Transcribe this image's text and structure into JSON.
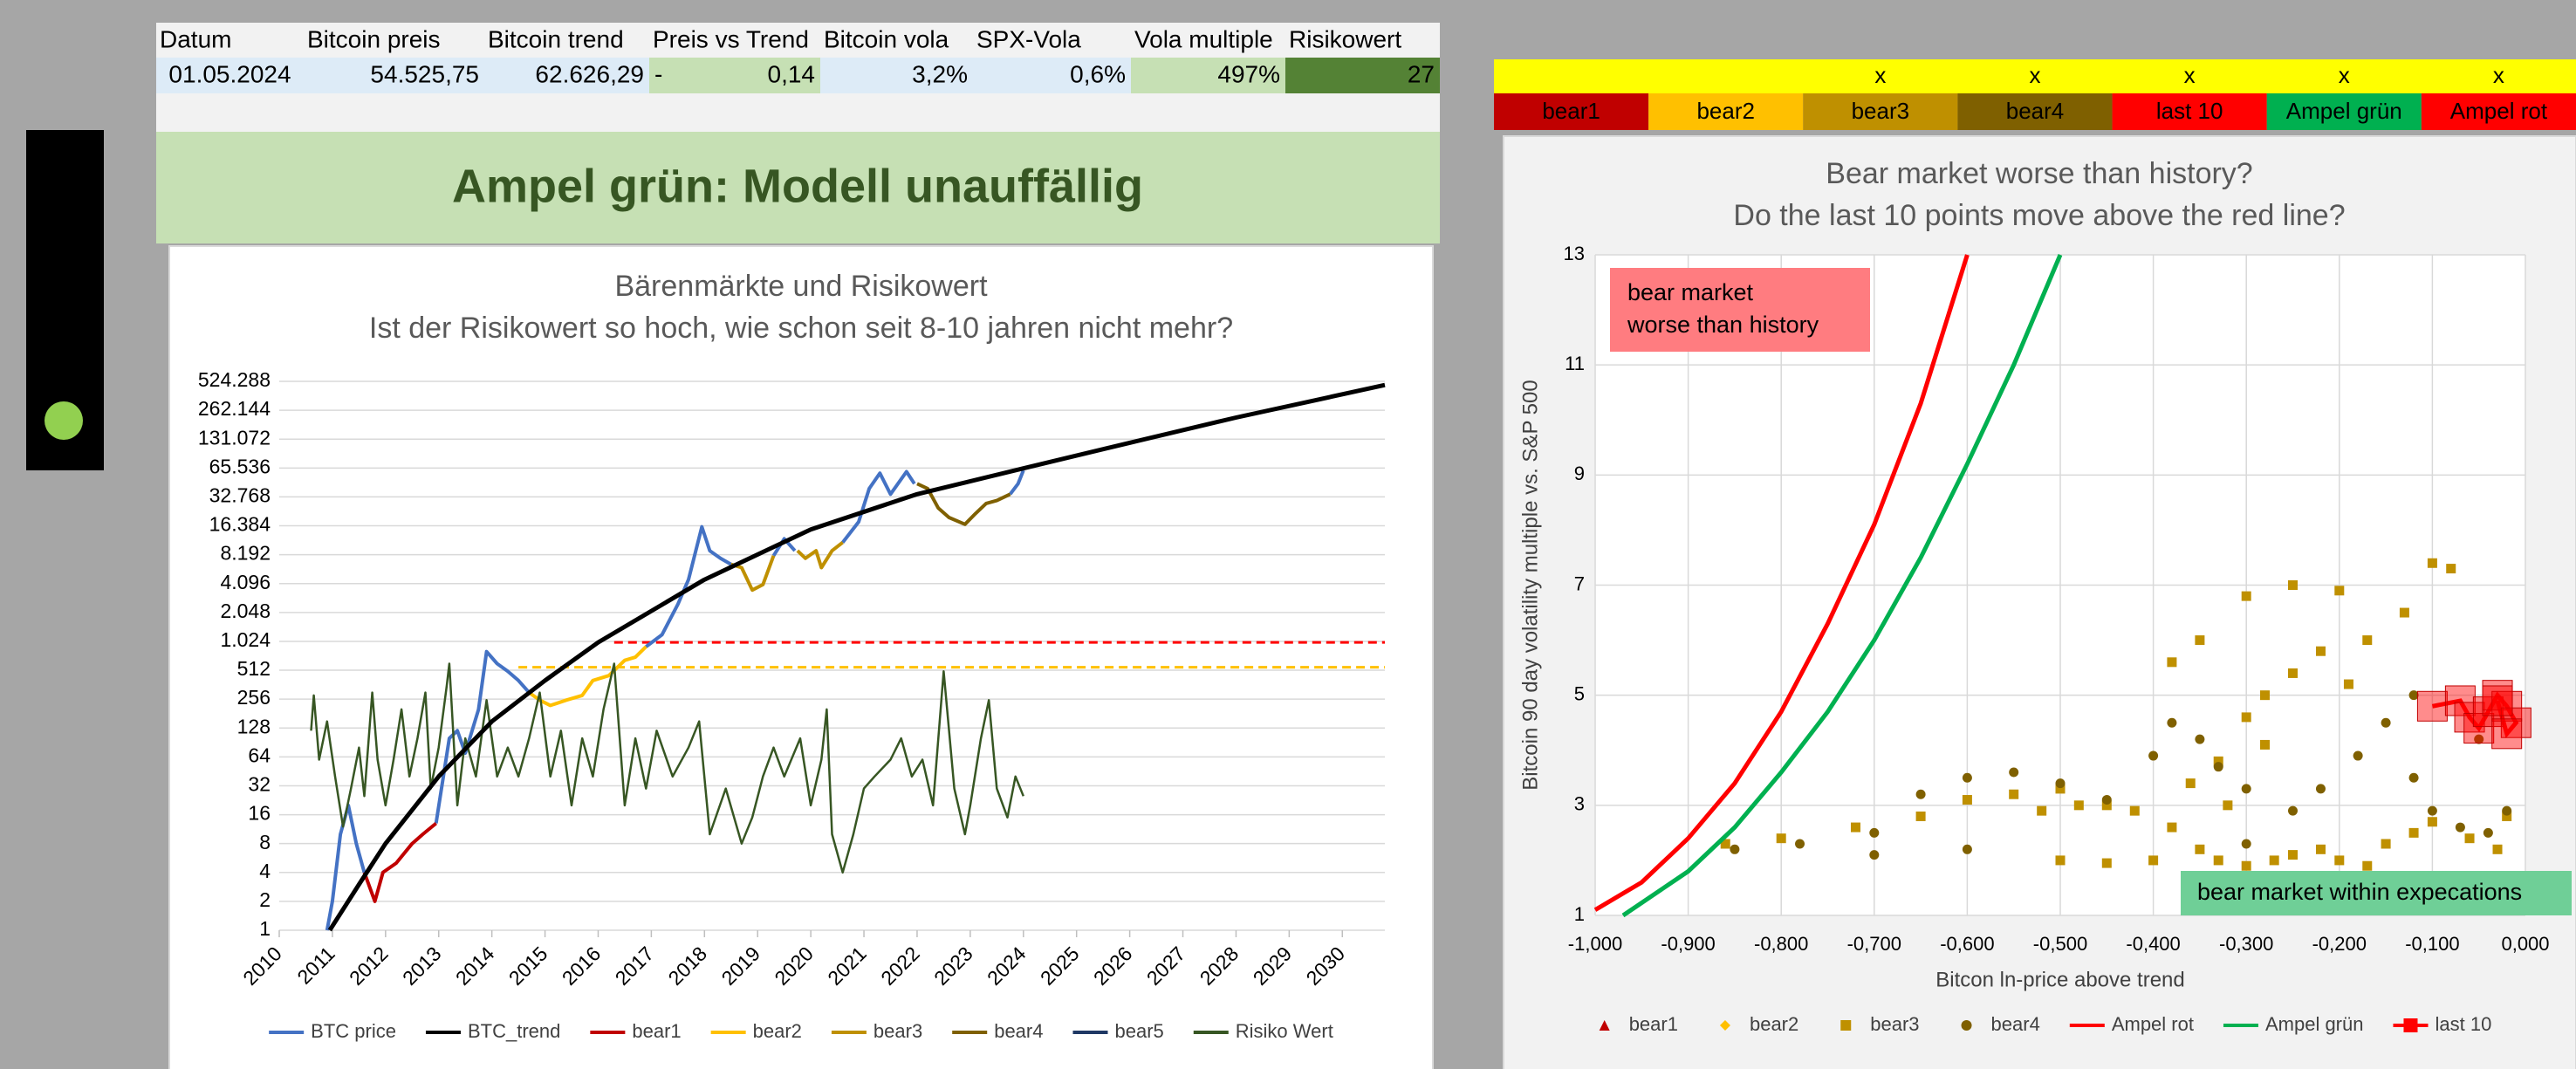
{
  "table": {
    "headers": [
      "Datum",
      "Bitcoin preis",
      "Bitcoin trend",
      "Preis vs Trend",
      "Bitcoin vola",
      "SPX-Vola",
      "Vola multiple",
      "Risikowert"
    ],
    "row": [
      "01.05.2024",
      "54.525,75",
      "62.626,29",
      {
        "sign": "-",
        "value": "0,14"
      },
      "3,2%",
      "0,6%",
      "497%",
      "27"
    ],
    "cell_colors": [
      "#ddebf7",
      "#ddebf7",
      "#ddebf7",
      "#c6e0b4",
      "#ddebf7",
      "#ddebf7",
      "#c6e0b4",
      "#548235"
    ]
  },
  "banner": "Ampel grün: Modell unauffällig",
  "indicator": {
    "color": "#92d050"
  },
  "ampel": {
    "flag_row_color": "#ffff00",
    "columns": [
      {
        "label": "bear1",
        "color": "#c00000"
      },
      {
        "label": "bear2",
        "color": "#ffc000"
      },
      {
        "label": "bear3",
        "color": "#bf9000",
        "flag": "x"
      },
      {
        "label": "bear4",
        "color": "#7f6000",
        "flag": "x"
      },
      {
        "label": "last 10",
        "color": "#ff0000",
        "flag": "x"
      },
      {
        "label": "Ampel grün",
        "color": "#00b050",
        "flag": "x"
      },
      {
        "label": "Ampel rot",
        "color": "#ff0000",
        "flag": "x"
      }
    ]
  },
  "chart_data": [
    {
      "type": "line",
      "title": "Bärenmärkte und Risikowert",
      "subtitle": "Ist der Risikowert so hoch, wie schon seit 8-10 jahren nicht mehr?",
      "log_y": true,
      "grid": true,
      "xlim": [
        2010,
        2030.8
      ],
      "xticks": [
        2010,
        2011,
        2012,
        2013,
        2014,
        2015,
        2016,
        2017,
        2018,
        2019,
        2020,
        2021,
        2022,
        2023,
        2024,
        2025,
        2026,
        2027,
        2028,
        2029,
        2030
      ],
      "ylim": [
        1,
        524288
      ],
      "yticks": [
        1,
        2,
        4,
        8,
        16,
        32,
        64,
        128,
        256,
        512,
        {
          "value": 1024,
          "label": "1.024"
        },
        {
          "value": 2048,
          "label": "2.048"
        },
        {
          "value": 4096,
          "label": "4.096"
        },
        {
          "value": 8192,
          "label": "8.192"
        },
        {
          "value": 16384,
          "label": "16.384"
        },
        {
          "value": 32768,
          "label": "32.768"
        },
        {
          "value": 65536,
          "label": "65.536"
        },
        {
          "value": 131072,
          "label": "131.072"
        },
        {
          "value": 262144,
          "label": "262.144"
        },
        {
          "value": 524288,
          "label": "524.288"
        }
      ],
      "reference_lines": [
        {
          "color": "#ff0000",
          "x": [
            2016.3,
            2030.8
          ],
          "values": [
            1000,
            1000
          ]
        },
        {
          "color": "#ffc000",
          "x": [
            2014.5,
            2030.8
          ],
          "values": [
            550,
            550
          ]
        }
      ],
      "series": [
        {
          "name": "BTC price",
          "color": "#4472c4",
          "width": 4,
          "x": [
            2010.9,
            2011.0,
            2011.15,
            2011.3,
            2011.45,
            2011.6,
            2011.65,
            2012.95,
            2013.2,
            2013.35,
            2013.5,
            2013.75,
            2013.9,
            2014.1,
            2014.3,
            2014.5,
            2014.7,
            2014.75,
            2016.9,
            2017.2,
            2017.5,
            2017.7,
            2017.95,
            2018.1,
            2018.3,
            2018.5,
            2018.55,
            2019.3,
            2019.5,
            2019.7,
            2019.75,
            2020.6,
            2020.9,
            2021.1,
            2021.3,
            2021.5,
            2021.8,
            2021.95,
            2022.0,
            2023.75,
            2023.9,
            2024.0
          ],
          "values": [
            1,
            2,
            10,
            20,
            8,
            4,
            null,
            13,
            100,
            120,
            70,
            200,
            800,
            600,
            500,
            400,
            300,
            null,
            900,
            1200,
            2500,
            4500,
            16000,
            9000,
            7500,
            6500,
            null,
            8000,
            12000,
            9000,
            null,
            11000,
            18000,
            40000,
            58000,
            35000,
            60000,
            45000,
            null,
            35000,
            45000,
            62000
          ]
        },
        {
          "name": "BTC_trend",
          "color": "#000000",
          "width": 5,
          "x": [
            2010.95,
            2011.5,
            2012,
            2013,
            2014,
            2015,
            2016,
            2018,
            2020,
            2022,
            2024,
            2026,
            2028,
            2030.8
          ],
          "values": [
            1,
            3,
            8,
            40,
            150,
            400,
            1000,
            4500,
            15000,
            35000,
            65000,
            120000,
            220000,
            480000
          ]
        },
        {
          "name": "bear1",
          "color": "#c00000",
          "width": 4,
          "x": [
            2011.6,
            2011.8,
            2011.95,
            2012.2,
            2012.5,
            2012.7,
            2012.95
          ],
          "values": [
            4,
            2,
            4,
            5,
            8,
            10,
            13
          ]
        },
        {
          "name": "bear2",
          "color": "#ffc000",
          "width": 4,
          "x": [
            2014.7,
            2014.9,
            2015.1,
            2015.4,
            2015.7,
            2015.9,
            2016.2,
            2016.5,
            2016.7,
            2016.9
          ],
          "values": [
            300,
            250,
            220,
            250,
            280,
            400,
            450,
            650,
            700,
            900
          ]
        },
        {
          "name": "bear3",
          "color": "#bf9000",
          "width": 4,
          "x": [
            2018.5,
            2018.7,
            2018.9,
            2019.1,
            2019.3,
            2019.5,
            2019.75,
            2019.9,
            2020.1,
            2020.2,
            2020.4,
            2020.6
          ],
          "values": [
            6500,
            6000,
            3500,
            4000,
            8000,
            null,
            9000,
            7500,
            9000,
            6000,
            9000,
            11000
          ]
        },
        {
          "name": "bear4",
          "color": "#7f6000",
          "width": 4,
          "x": [
            2022.0,
            2022.2,
            2022.4,
            2022.6,
            2022.9,
            2023.1,
            2023.3,
            2023.5,
            2023.75
          ],
          "values": [
            45000,
            40000,
            25000,
            20000,
            17000,
            22000,
            28000,
            30000,
            35000
          ]
        },
        {
          "name": "bear5",
          "color": "#1f3864",
          "width": 4,
          "x": [],
          "values": []
        },
        {
          "name": "Risiko Wert",
          "color": "#375623",
          "width": 2.5,
          "x": [
            2010.6,
            2010.65,
            2010.75,
            2010.9,
            2011.05,
            2011.2,
            2011.35,
            2011.5,
            2011.6,
            2011.75,
            2011.85,
            2012.0,
            2012.15,
            2012.3,
            2012.45,
            2012.6,
            2012.75,
            2012.85,
            2013.0,
            2013.15,
            2013.2,
            2013.35,
            2013.5,
            2013.7,
            2013.9,
            2014.1,
            2014.3,
            2014.5,
            2014.7,
            2014.9,
            2015.1,
            2015.3,
            2015.5,
            2015.7,
            2015.9,
            2016.1,
            2016.3,
            2016.5,
            2016.7,
            2016.9,
            2017.1,
            2017.4,
            2017.7,
            2017.9,
            2018.1,
            2018.4,
            2018.7,
            2018.9,
            2019.1,
            2019.3,
            2019.5,
            2019.8,
            2020.0,
            2020.2,
            2020.3,
            2020.4,
            2020.6,
            2020.8,
            2021.0,
            2021.2,
            2021.5,
            2021.7,
            2021.9,
            2022.1,
            2022.3,
            2022.5,
            2022.7,
            2022.9,
            2023.0,
            2023.2,
            2023.35,
            2023.5,
            2023.7,
            2023.85,
            2024.0
          ],
          "values": [
            120,
            280,
            60,
            150,
            40,
            12,
            30,
            80,
            25,
            300,
            60,
            20,
            60,
            200,
            40,
            100,
            300,
            30,
            80,
            350,
            600,
            20,
            100,
            40,
            250,
            40,
            80,
            40,
            100,
            300,
            40,
            120,
            20,
            100,
            40,
            200,
            600,
            20,
            100,
            30,
            120,
            40,
            80,
            150,
            10,
            30,
            8,
            15,
            40,
            80,
            40,
            100,
            20,
            60,
            200,
            10,
            4,
            10,
            30,
            40,
            60,
            100,
            40,
            60,
            20,
            500,
            30,
            10,
            20,
            100,
            250,
            30,
            15,
            40,
            25
          ]
        }
      ]
    },
    {
      "type": "scatter",
      "title": "Bear market worse than history?",
      "subtitle": "Do the last 10 points move above the red line?",
      "x_label": "Bitcon ln-price above trend",
      "y_label": "Bitcoin 90 day volatility multiple vs. S&P 500",
      "grid": true,
      "xlim": [
        -1,
        0
      ],
      "xticks": [
        {
          "value": -1,
          "label": "-1,000"
        },
        {
          "value": -0.9,
          "label": "-0,900"
        },
        {
          "value": -0.8,
          "label": "-0,800"
        },
        {
          "value": -0.7,
          "label": "-0,700"
        },
        {
          "value": -0.6,
          "label": "-0,600"
        },
        {
          "value": -0.5,
          "label": "-0,500"
        },
        {
          "value": -0.4,
          "label": "-0,400"
        },
        {
          "value": -0.3,
          "label": "-0,300"
        },
        {
          "value": -0.2,
          "label": "-0,200"
        },
        {
          "value": -0.1,
          "label": "-0,100"
        },
        {
          "value": 0,
          "label": "0,000"
        }
      ],
      "ylim": [
        1,
        13
      ],
      "yticks": [
        1,
        3,
        5,
        7,
        9,
        11,
        13
      ],
      "annotations": [
        {
          "text": "bear market\nworse than history",
          "color": "#ff7c80"
        },
        {
          "text": "bear market within expecations",
          "color": "#6fcf97"
        }
      ],
      "series": [
        {
          "name": "bear1",
          "color": "#c00000",
          "marker": "triangle",
          "x": [],
          "values": []
        },
        {
          "name": "bear2",
          "color": "#ffc000",
          "marker": "diamond",
          "x": [],
          "values": []
        },
        {
          "name": "bear3",
          "color": "#bf9000",
          "marker": "square",
          "x": [
            -0.86,
            -0.8,
            -0.72,
            -0.65,
            -0.6,
            -0.55,
            -0.5,
            -0.45,
            -0.42,
            -0.38,
            -0.35,
            -0.33,
            -0.3,
            -0.27,
            -0.25,
            -0.22,
            -0.2,
            -0.17,
            -0.15,
            -0.12,
            -0.1,
            -0.06,
            -0.03,
            -0.02,
            -0.36,
            -0.33,
            -0.3,
            -0.28,
            -0.25,
            -0.22,
            -0.19,
            -0.17,
            -0.2,
            -0.25,
            -0.3,
            -0.1,
            -0.08,
            -0.13,
            -0.35,
            -0.38,
            -0.28,
            -0.32,
            -0.48,
            -0.52,
            -0.4,
            -0.5,
            -0.45
          ],
          "values": [
            2.3,
            2.4,
            2.6,
            2.8,
            3.1,
            3.2,
            3.3,
            3.0,
            2.9,
            2.6,
            2.2,
            2.0,
            1.9,
            2.0,
            2.1,
            2.2,
            2.0,
            1.9,
            2.3,
            2.5,
            2.7,
            2.4,
            2.2,
            2.8,
            3.4,
            3.8,
            4.6,
            5.0,
            5.4,
            5.8,
            5.2,
            6.0,
            6.9,
            7.0,
            6.8,
            7.4,
            7.3,
            6.5,
            6.0,
            5.6,
            4.1,
            3.0,
            3.0,
            2.9,
            2.0,
            2.0,
            1.95
          ]
        },
        {
          "name": "bear4",
          "color": "#7f6000",
          "marker": "circle",
          "x": [
            -0.85,
            -0.78,
            -0.7,
            -0.65,
            -0.6,
            -0.55,
            -0.5,
            -0.45,
            -0.4,
            -0.38,
            -0.35,
            -0.33,
            -0.3,
            -0.25,
            -0.22,
            -0.18,
            -0.15,
            -0.12,
            -0.1,
            -0.07,
            -0.04,
            -0.02,
            -0.3,
            -0.6,
            -0.7,
            -0.12,
            -0.05
          ],
          "values": [
            2.2,
            2.3,
            2.5,
            3.2,
            3.5,
            3.6,
            3.4,
            3.1,
            3.9,
            4.5,
            4.2,
            3.7,
            3.3,
            2.9,
            3.3,
            3.9,
            4.5,
            3.5,
            2.9,
            2.6,
            2.5,
            2.9,
            2.3,
            2.2,
            2.1,
            5.0,
            4.2
          ]
        },
        {
          "name": "Ampel rot",
          "color": "#ff0000",
          "marker": "line",
          "x": [
            -1,
            -0.95,
            -0.9,
            -0.85,
            -0.8,
            -0.75,
            -0.7,
            -0.65,
            -0.6
          ],
          "values": [
            1.1,
            1.6,
            2.4,
            3.4,
            4.7,
            6.3,
            8.1,
            10.3,
            13
          ]
        },
        {
          "name": "Ampel grün",
          "color": "#00b050",
          "marker": "line",
          "x": [
            -0.97,
            -0.9,
            -0.85,
            -0.8,
            -0.75,
            -0.7,
            -0.65,
            -0.6,
            -0.55,
            -0.5
          ],
          "values": [
            1,
            1.8,
            2.6,
            3.6,
            4.7,
            6,
            7.5,
            9.2,
            11,
            13
          ]
        },
        {
          "name": "last 10",
          "color": "#ff0000",
          "marker": "square-line",
          "x": [
            -0.1,
            -0.07,
            -0.06,
            -0.05,
            -0.04,
            -0.03,
            -0.02,
            -0.01,
            -0.02,
            -0.03
          ],
          "values": [
            4.8,
            4.9,
            4.6,
            4.4,
            4.7,
            5.0,
            4.8,
            4.5,
            4.3,
            4.9
          ]
        }
      ]
    }
  ]
}
